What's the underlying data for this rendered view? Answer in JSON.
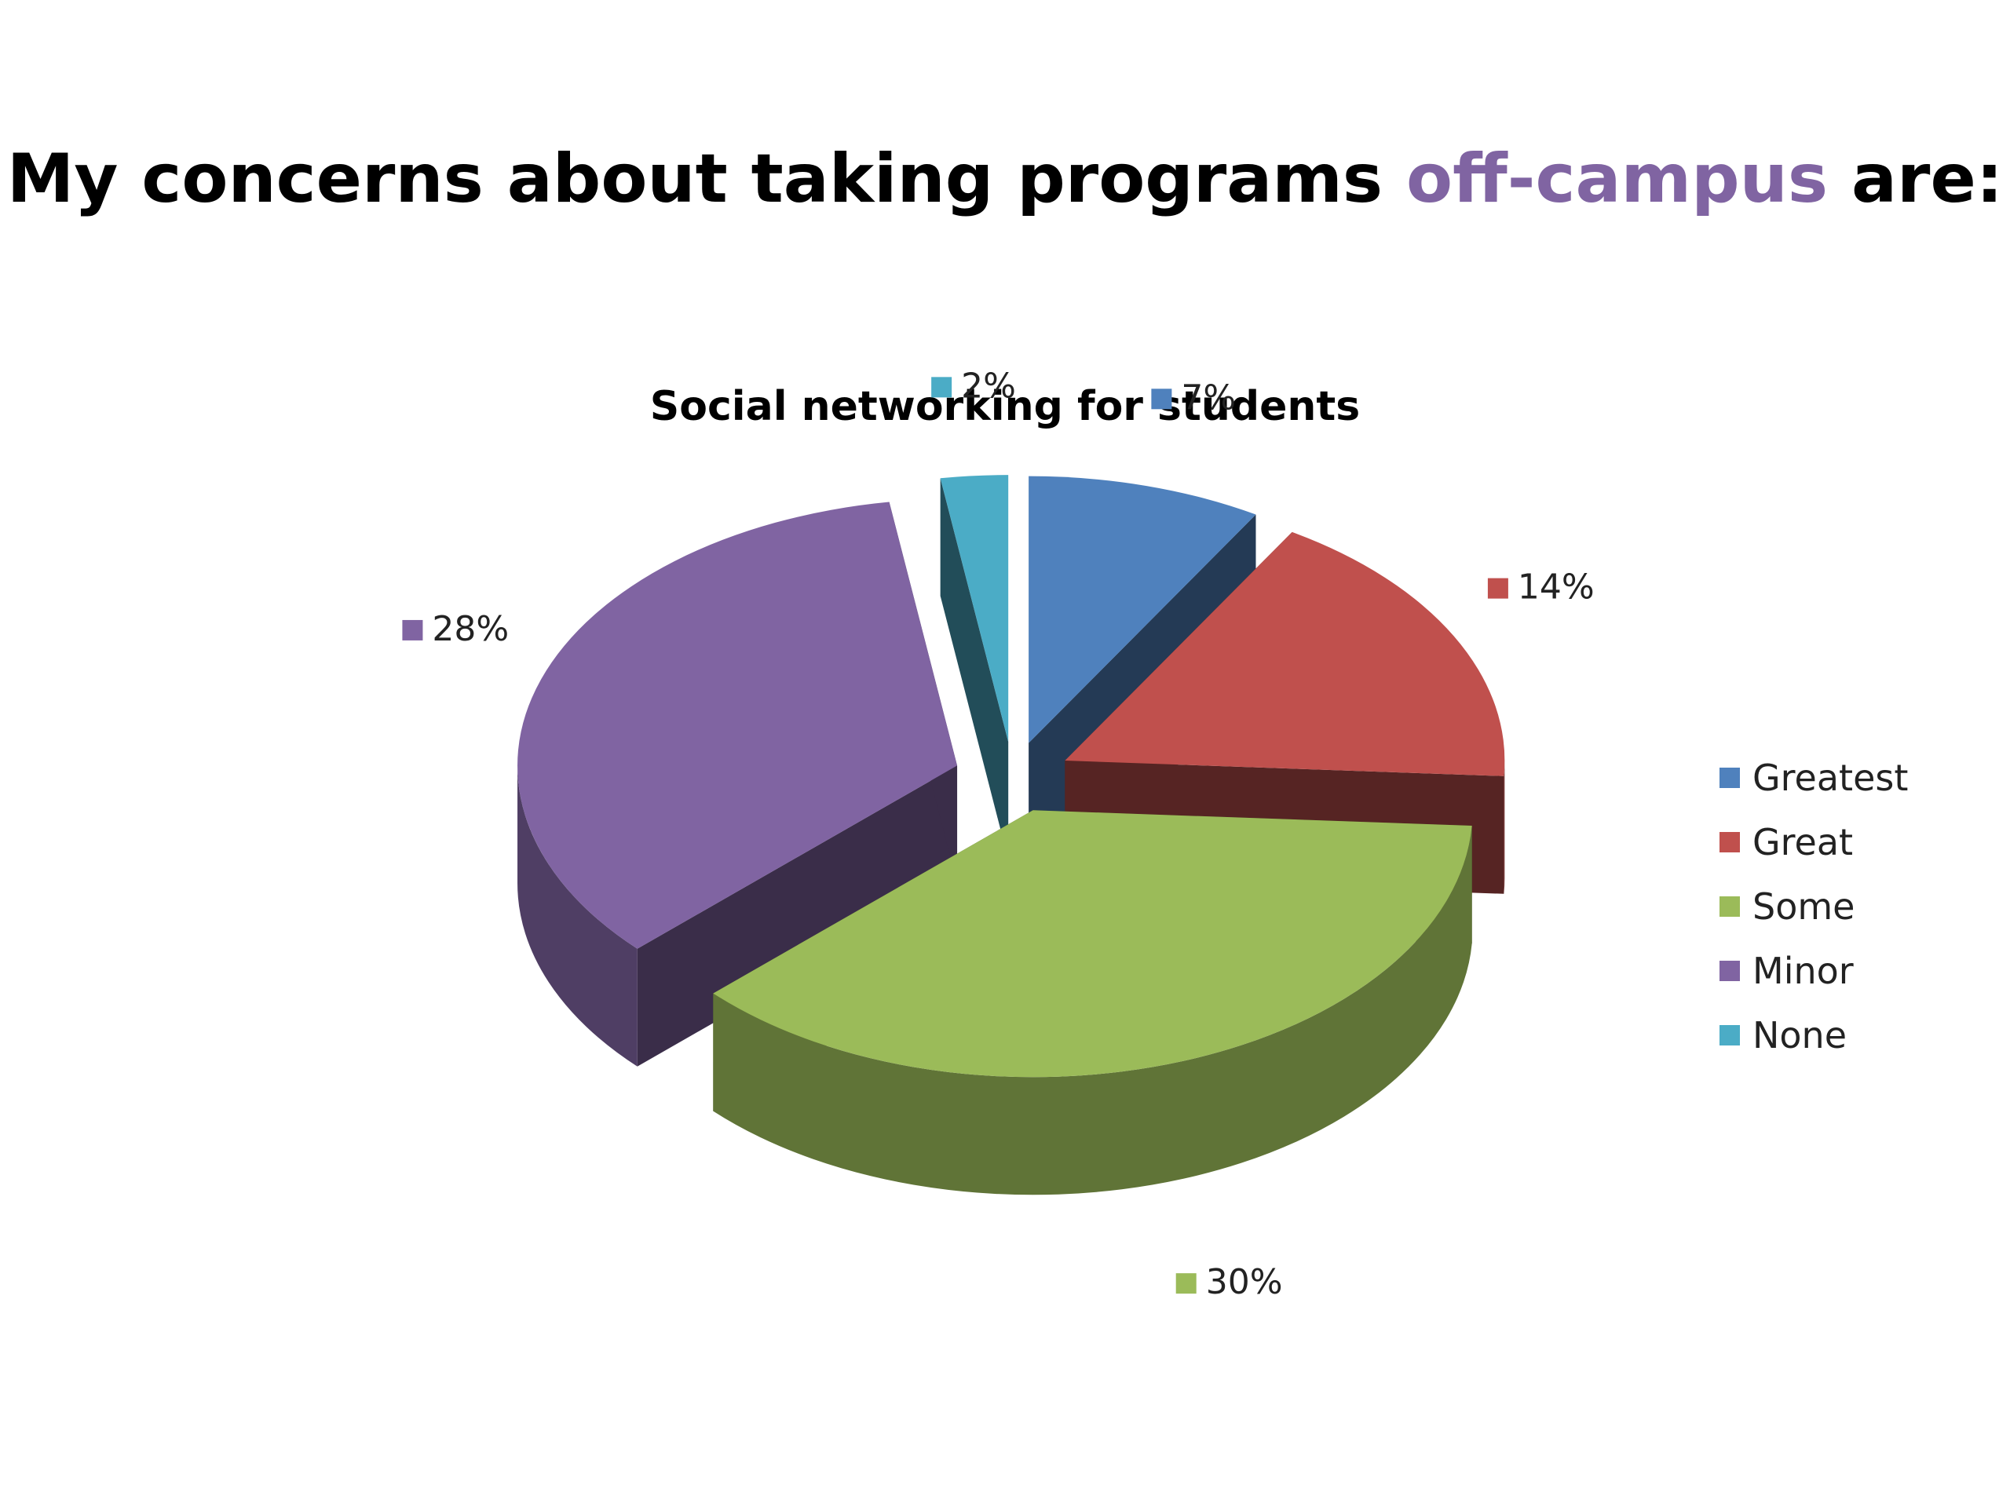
{
  "slide": {
    "title_prefix": "My concerns about taking programs ",
    "title_highlight": "off-campus",
    "title_suffix": " are:"
  },
  "colors": {
    "accent": "#8064a2"
  },
  "chart_data": {
    "type": "pie",
    "title": "Social networking for students",
    "three_d": true,
    "exploded": true,
    "legend_position": "right",
    "slices": [
      {
        "name": "Greatest",
        "value": 7,
        "label": "7%",
        "color": "#4f81bd"
      },
      {
        "name": "Great",
        "value": 14,
        "label": "14%",
        "color": "#c0504d"
      },
      {
        "name": "Some",
        "value": 30,
        "label": "30%",
        "color": "#9bbb59"
      },
      {
        "name": "Minor",
        "value": 28,
        "label": "28%",
        "color": "#8064a2"
      },
      {
        "name": "None",
        "value": 2,
        "label": "2%",
        "color": "#4bacc6"
      }
    ]
  }
}
